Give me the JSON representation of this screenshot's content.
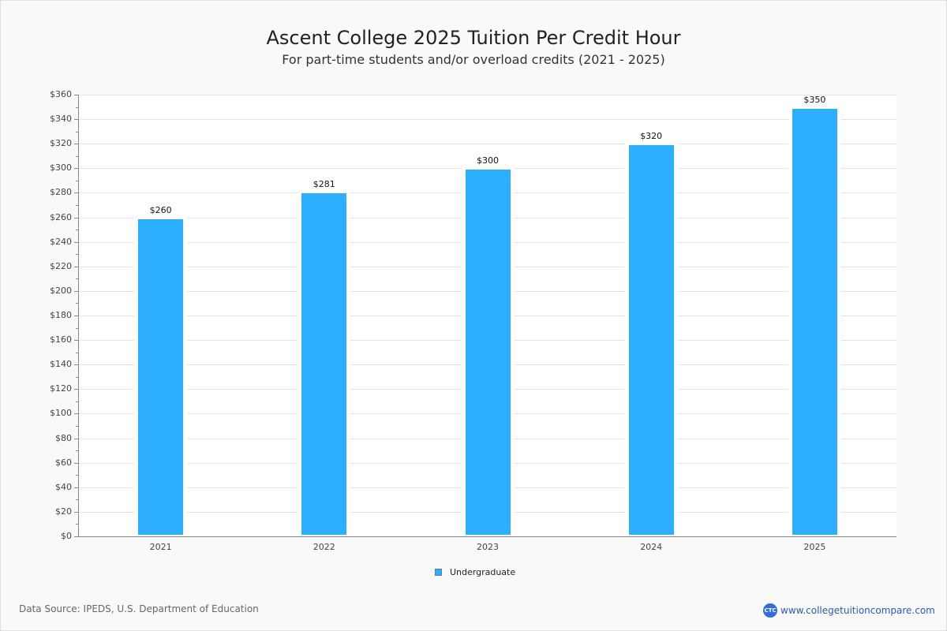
{
  "header": {
    "title": "Ascent College 2025 Tuition Per Credit Hour",
    "subtitle": "For part-time students and/or overload credits (2021 - 2025)"
  },
  "chart": {
    "y_ticks": [
      "$0",
      "$20",
      "$40",
      "$60",
      "$80",
      "$100",
      "$120",
      "$140",
      "$160",
      "$180",
      "$200",
      "$220",
      "$240",
      "$260",
      "$280",
      "$300",
      "$320",
      "$340",
      "$360"
    ],
    "bars": [
      {
        "year": "2021",
        "label": "$260",
        "value": 260
      },
      {
        "year": "2022",
        "label": "$281",
        "value": 281
      },
      {
        "year": "2023",
        "label": "$300",
        "value": 300
      },
      {
        "year": "2024",
        "label": "$320",
        "value": 320
      },
      {
        "year": "2025",
        "label": "$350",
        "value": 350
      }
    ],
    "bar_color": "#2eaeff"
  },
  "legend": {
    "label": "Undergraduate"
  },
  "footer": {
    "source": "Data Source: IPEDS, U.S. Department of Education",
    "brand_logo": "CTC",
    "brand_url": "www.collegetuitioncompare.com"
  },
  "chart_data": {
    "type": "bar",
    "title": "Ascent College 2025 Tuition Per Credit Hour",
    "subtitle": "For part-time students and/or overload credits (2021 - 2025)",
    "categories": [
      "2021",
      "2022",
      "2023",
      "2024",
      "2025"
    ],
    "series": [
      {
        "name": "Undergraduate",
        "values": [
          260,
          281,
          300,
          320,
          350
        ],
        "color": "#2eaeff"
      }
    ],
    "data_labels": [
      "$260",
      "$281",
      "$300",
      "$320",
      "$350"
    ],
    "xlabel": "",
    "ylabel": "",
    "ylim": [
      0,
      360
    ],
    "y_tick_step": 20,
    "grid": true,
    "legend_position": "bottom"
  }
}
